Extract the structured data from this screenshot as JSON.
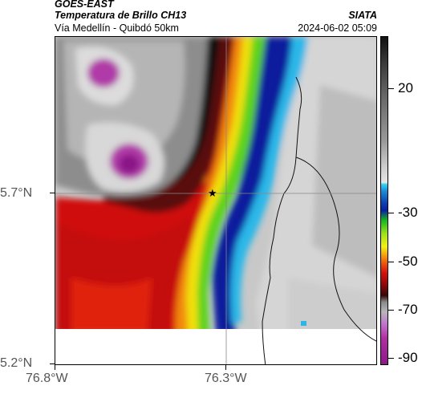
{
  "header": {
    "satellite": "GOES-EAST",
    "product": "Temperatura de Brillo CH13",
    "route": "Vía Medellín - Quibdó 50km",
    "org": "SIATA",
    "timestamp": "2024-06-02 05:09"
  },
  "axes": {
    "lat_labels": [
      "5.7°N",
      "5.2°N"
    ],
    "lon_labels": [
      "76.8°W",
      "76.3°W"
    ]
  },
  "colorbar": {
    "labels": [
      "20",
      "-30",
      "-50",
      "-70",
      "-90"
    ]
  },
  "colors": {
    "cold_cloud": "#8c1a8a",
    "warm_front": "#d8100c",
    "rain_band": "#0a20a0",
    "clear": "#c8c8c8"
  }
}
